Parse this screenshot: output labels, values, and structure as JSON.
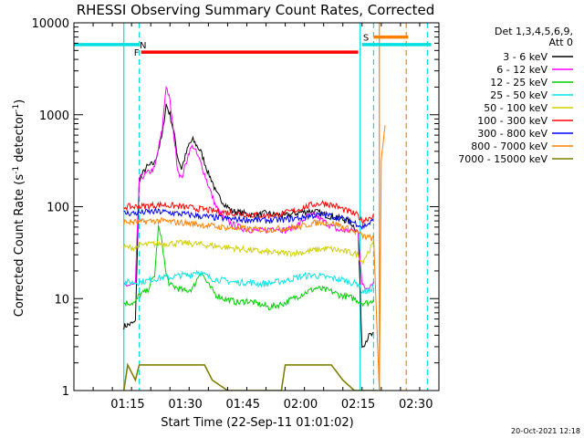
{
  "chart_data": {
    "type": "line",
    "title": "RHESSI Observing Summary Count Rates, Corrected",
    "xlabel": "Start Time (22-Sep-11 01:01:02)",
    "ylabel": "Corrected Count Rate (s",
    "ylabel_sup": "-1",
    "ylabel_tail": " detector",
    "ylabel_sup2": "-1",
    "ylabel_end": ")",
    "footer": "20-Oct-2021 12:18",
    "legend_title_line1": "Det 1,3,4,5,6,9,",
    "legend_title_line2": "Att 0",
    "legend_placement": "right",
    "y_scale": "log",
    "xlim_minutes": [
      0,
      95
    ],
    "ylim": [
      1,
      10000
    ],
    "x_ticks": [
      {
        "label": "01:15",
        "t": 14
      },
      {
        "label": "01:30",
        "t": 29
      },
      {
        "label": "01:45",
        "t": 44
      },
      {
        "label": "02:00",
        "t": 59
      },
      {
        "label": "02:15",
        "t": 74
      },
      {
        "label": "02:30",
        "t": 89
      }
    ],
    "y_ticks": [
      {
        "label": "1",
        "v": 1
      },
      {
        "label": "10",
        "v": 10
      },
      {
        "label": "100",
        "v": 100
      },
      {
        "label": "1000",
        "v": 1000
      },
      {
        "label": "10000",
        "v": 10000
      }
    ],
    "flags": [
      {
        "label": "N",
        "color": "#00e0e0",
        "start": 0,
        "end": 17,
        "value": 5800,
        "label_at": 18
      },
      {
        "label": "N",
        "color": "#00e0e0",
        "start": 75,
        "end": 93,
        "value": 5800
      },
      {
        "label": "F",
        "color": "#ff0000",
        "start": 17.5,
        "end": 74,
        "value": 4800,
        "label_at": 16.3
      },
      {
        "label": "S",
        "color": "#ff8000",
        "start": 78,
        "end": 87,
        "value": 7000,
        "label_at": 76
      }
    ],
    "vlines": [
      {
        "t": 13,
        "color": "#00e0e0",
        "style": "solid"
      },
      {
        "t": 17,
        "color": "#00e0e0",
        "style": "dashed"
      },
      {
        "t": 74.5,
        "color": "#00e0e0",
        "style": "solid"
      },
      {
        "t": 78,
        "color": "#00e0e0",
        "style": "dashed"
      },
      {
        "t": 79.5,
        "color": "#ff8000",
        "style": "solid"
      },
      {
        "t": 86.5,
        "color": "#ff8000",
        "style": "dashed"
      },
      {
        "t": 92,
        "color": "#00e0e0",
        "style": "dashed"
      }
    ],
    "series": [
      {
        "name": "3 - 6 keV",
        "color": "#000000",
        "t": [
          13,
          16,
          17,
          19,
          21,
          23,
          24,
          25,
          26,
          27,
          28,
          30,
          31,
          33,
          35,
          36,
          37,
          39,
          41,
          44,
          47,
          50,
          52,
          55,
          58,
          61,
          63,
          66,
          69,
          72,
          73,
          74,
          75,
          76,
          77,
          78
        ],
        "v": [
          5,
          5.5,
          200,
          270,
          300,
          600,
          1300,
          1000,
          650,
          350,
          260,
          480,
          530,
          400,
          230,
          190,
          140,
          110,
          90,
          85,
          80,
          85,
          82,
          80,
          85,
          90,
          88,
          80,
          75,
          68,
          60,
          52,
          3,
          3.5,
          4,
          4
        ]
      },
      {
        "name": "6 - 12 keV",
        "color": "#ff00ff",
        "t": [
          13,
          16,
          17,
          19,
          21,
          23,
          24,
          25,
          26,
          27,
          28,
          30,
          31,
          33,
          35,
          36,
          37,
          39,
          41,
          44,
          47,
          50,
          52,
          55,
          58,
          61,
          63,
          66,
          69,
          72,
          74,
          75,
          76,
          77,
          78
        ],
        "v": [
          14,
          14,
          200,
          230,
          260,
          700,
          2100,
          1400,
          600,
          260,
          200,
          400,
          460,
          300,
          170,
          130,
          100,
          75,
          65,
          58,
          55,
          55,
          60,
          55,
          62,
          80,
          80,
          65,
          55,
          55,
          55,
          14,
          13,
          14,
          15
        ]
      },
      {
        "name": "12 - 25 keV",
        "color": "#00d000",
        "t": [
          13,
          16,
          17,
          19,
          21,
          22,
          23,
          24,
          25,
          27,
          29,
          31,
          33,
          35,
          37,
          39,
          41,
          43,
          45,
          47,
          49,
          51,
          53,
          55,
          57,
          59,
          61,
          63,
          65,
          67,
          69,
          71,
          73,
          74,
          75,
          77,
          78
        ],
        "v": [
          9,
          9,
          11,
          12,
          18,
          60,
          40,
          18,
          14,
          13,
          12,
          13,
          20,
          14,
          11,
          10,
          9.5,
          9,
          9.5,
          9,
          8.5,
          8,
          8.5,
          9,
          10,
          11,
          12,
          13,
          12.5,
          12,
          11,
          10.5,
          10,
          9.5,
          9,
          9,
          10
        ]
      },
      {
        "name": "25 - 50 keV",
        "color": "#00e8e8",
        "t": [
          13,
          16,
          17,
          20,
          23,
          25,
          28,
          30,
          32,
          34,
          36,
          38,
          40,
          42,
          44,
          46,
          48,
          50,
          52,
          54,
          56,
          58,
          60,
          62,
          64,
          66,
          68,
          70,
          72,
          74,
          75,
          77,
          78
        ],
        "v": [
          15,
          15,
          15,
          16,
          17,
          17,
          18,
          18,
          20,
          18,
          16.5,
          16,
          15.5,
          15,
          15,
          15,
          14.5,
          14.5,
          15,
          15.5,
          16,
          17,
          17.5,
          18,
          17.5,
          17,
          16.5,
          16,
          15,
          14.5,
          12,
          12,
          14
        ]
      },
      {
        "name": "50 - 100 keV",
        "color": "#d0d000",
        "t": [
          13,
          16,
          17,
          20,
          25,
          30,
          35,
          40,
          45,
          50,
          55,
          60,
          63,
          66,
          70,
          74,
          75,
          78
        ],
        "v": [
          36,
          36,
          38,
          39,
          40,
          40,
          38,
          36,
          34,
          32,
          31,
          32,
          34,
          35,
          33,
          30,
          25,
          40
        ]
      },
      {
        "name": "100 - 300 keV",
        "color": "#ff0000",
        "t": [
          13,
          16,
          17,
          20,
          23,
          26,
          30,
          34,
          38,
          42,
          46,
          50,
          54,
          58,
          62,
          65,
          68,
          71,
          74,
          75,
          78
        ],
        "v": [
          100,
          100,
          100,
          103,
          105,
          102,
          98,
          93,
          88,
          85,
          82,
          80,
          83,
          92,
          105,
          110,
          102,
          90,
          80,
          70,
          80
        ]
      },
      {
        "name": "300 - 800 keV",
        "color": "#0000ff",
        "t": [
          13,
          16,
          17,
          20,
          23,
          26,
          30,
          34,
          38,
          42,
          46,
          50,
          54,
          58,
          62,
          65,
          68,
          71,
          74,
          75,
          78
        ],
        "v": [
          85,
          85,
          86,
          88,
          88,
          85,
          82,
          78,
          75,
          73,
          72,
          71,
          72,
          75,
          80,
          82,
          78,
          72,
          65,
          60,
          70
        ]
      },
      {
        "name": "800 - 7000 keV",
        "color": "#ff8000",
        "t": [
          13,
          16,
          17,
          20,
          23,
          26,
          30,
          34,
          38,
          42,
          46,
          50,
          54,
          58,
          60,
          62,
          65,
          68,
          71,
          74,
          75,
          78,
          79.5,
          80,
          81
        ],
        "v": [
          68,
          68,
          68,
          70,
          70,
          68,
          66,
          63,
          60,
          58,
          57,
          56,
          58,
          60,
          62,
          66,
          68,
          65,
          58,
          52,
          48,
          45,
          1,
          300,
          800
        ]
      },
      {
        "name": "7000 - 15000 keV",
        "color": "#808000",
        "t": [
          13,
          14,
          16,
          17,
          20,
          25,
          30,
          34,
          36,
          40,
          45,
          50,
          54,
          55,
          56,
          57,
          58,
          59,
          60,
          61,
          62,
          63,
          64,
          65,
          67,
          70,
          73,
          75,
          77,
          79
        ],
        "v": [
          1,
          1.9,
          1.3,
          1.9,
          1.9,
          1.9,
          1.9,
          1.9,
          1.3,
          1,
          1,
          1,
          1,
          1.9,
          1.9,
          1.9,
          1.9,
          1.9,
          1.9,
          1.9,
          1.9,
          1.9,
          1.9,
          1.9,
          1.9,
          1.3,
          1,
          1,
          1,
          1
        ]
      }
    ]
  }
}
